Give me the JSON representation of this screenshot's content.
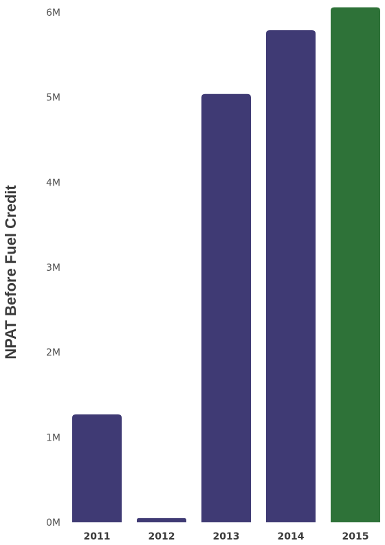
{
  "chart_data": {
    "type": "bar",
    "title": "",
    "ylabel": "NPAT Before Fuel Credit",
    "xlabel": "",
    "categories": [
      "2011",
      "2012",
      "2013",
      "2014",
      "2015"
    ],
    "values": [
      1270000,
      50000,
      5040000,
      5790000,
      6060000
    ],
    "colors": [
      "#3f3a74",
      "#3f3a74",
      "#3f3a74",
      "#3f3a74",
      "#2e7238"
    ],
    "ylim": [
      0,
      6000000
    ],
    "yticks": [
      {
        "value": 0,
        "label": "0M"
      },
      {
        "value": 1000000,
        "label": "1M"
      },
      {
        "value": 2000000,
        "label": "2M"
      },
      {
        "value": 3000000,
        "label": "3M"
      },
      {
        "value": 4000000,
        "label": "4M"
      },
      {
        "value": 5000000,
        "label": "5M"
      },
      {
        "value": 6000000,
        "label": "6M"
      }
    ],
    "grid": false,
    "legend": "none"
  }
}
